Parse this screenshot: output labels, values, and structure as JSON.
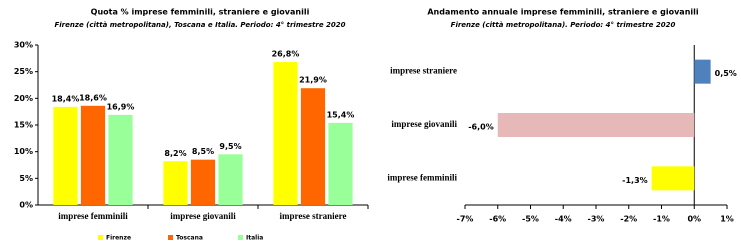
{
  "chart_data": [
    {
      "type": "bar",
      "title": "Quota % imprese femminili, straniere e giovanili",
      "subtitle": "Firenze (città metropolitana), Toscana e Italia. Periodo: 4° trimestre 2020",
      "categories": [
        "imprese femminili",
        "imprese giovanili",
        "imprese straniere"
      ],
      "series": [
        {
          "name": "Firenze",
          "color": "#ffff00",
          "values": [
            18.4,
            8.2,
            26.8
          ],
          "value_labels": [
            "18,4%",
            "8,2%",
            "26,8%"
          ]
        },
        {
          "name": "Toscana",
          "color": "#ff6600",
          "values": [
            18.6,
            8.5,
            21.9
          ],
          "value_labels": [
            "18,6%",
            "8,5%",
            "21,9%"
          ]
        },
        {
          "name": "Italia",
          "color": "#99ff99",
          "values": [
            16.9,
            9.5,
            15.4
          ],
          "value_labels": [
            "16,9%",
            "9,5%",
            "15,4%"
          ]
        }
      ],
      "ylim": [
        0,
        30
      ],
      "yticks": [
        {
          "value": 0,
          "label": "0%"
        },
        {
          "value": 5,
          "label": "5%"
        },
        {
          "value": 10,
          "label": "10%"
        },
        {
          "value": 15,
          "label": "15%"
        },
        {
          "value": 20,
          "label": "20%"
        },
        {
          "value": 25,
          "label": "25%"
        },
        {
          "value": 30,
          "label": "30%"
        }
      ],
      "legend": "bottom"
    },
    {
      "type": "hbar",
      "title": "Andamento annuale imprese femminili, straniere e giovanili",
      "subtitle": "Firenze (città metropolitana). Periodo: 4° trimestre 2020",
      "categories": [
        "imprese straniere",
        "imprese giovanili",
        "imprese femminili"
      ],
      "values": [
        0.5,
        -6.0,
        -1.3
      ],
      "value_labels": [
        "0,5%",
        "-6,0%",
        "-1,3%"
      ],
      "colors": [
        "#4f81bd",
        "#e6b9b8",
        "#ffff00"
      ],
      "xlim": [
        -7,
        1
      ],
      "xticks": [
        {
          "value": -7,
          "label": "-7%"
        },
        {
          "value": -6,
          "label": "-6%"
        },
        {
          "value": -5,
          "label": "-5%"
        },
        {
          "value": -4,
          "label": "-4%"
        },
        {
          "value": -3,
          "label": "-3%"
        },
        {
          "value": -2,
          "label": "-2%"
        },
        {
          "value": -1,
          "label": "-1%"
        },
        {
          "value": 0,
          "label": "0%"
        },
        {
          "value": 1,
          "label": "1%"
        }
      ]
    }
  ]
}
